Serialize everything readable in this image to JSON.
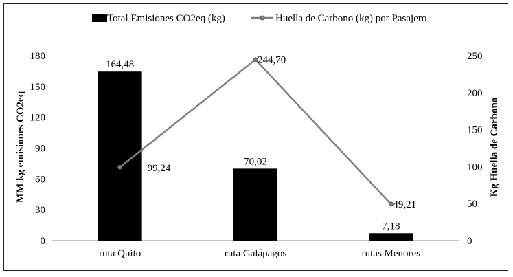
{
  "chart_data": {
    "type": "bar",
    "categories": [
      "ruta Quito",
      "ruta Galápagos",
      "rutas Menores"
    ],
    "series": [
      {
        "name": "Total Emisiones CO2eq (kg)",
        "type": "bar",
        "axis": "left",
        "color": "#000000",
        "values": [
          164.48,
          70.02,
          7.18
        ],
        "labels": [
          "164,48",
          "70,02",
          "7,18"
        ]
      },
      {
        "name": "Huella de Carbono (kg) por Pasajero",
        "type": "line",
        "axis": "right",
        "color": "#7f7f7f",
        "values": [
          99.24,
          244.7,
          49.21
        ],
        "labels": [
          "99,24",
          "244,70",
          "49,21"
        ]
      }
    ],
    "ylabel": "MM kg emisiones CO2eq",
    "ylabel_right": "Kg Huella de Carbono",
    "ylim": [
      0,
      180
    ],
    "yticks": [
      "0",
      "30",
      "60",
      "90",
      "120",
      "150",
      "180"
    ],
    "ylim_right": [
      0,
      250
    ],
    "yticks_right": [
      "0",
      "50",
      "100",
      "150",
      "200",
      "250"
    ],
    "grid": false,
    "legend_position": "top"
  }
}
